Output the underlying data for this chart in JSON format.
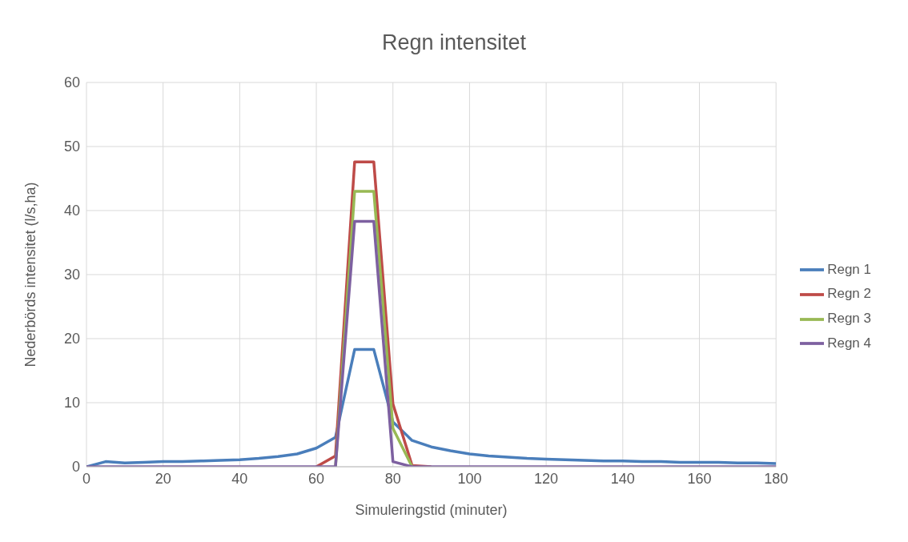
{
  "chart_data": {
    "type": "line",
    "title": "Regn intensitet",
    "xlabel": "Simuleringstid (minuter)",
    "ylabel": "Nederbörds intensitet (l/s,ha)",
    "x": [
      0,
      5,
      10,
      15,
      20,
      25,
      30,
      35,
      40,
      45,
      50,
      55,
      60,
      65,
      70,
      75,
      80,
      85,
      90,
      95,
      100,
      105,
      110,
      115,
      120,
      125,
      130,
      135,
      140,
      145,
      150,
      155,
      160,
      165,
      170,
      175,
      180
    ],
    "series": [
      {
        "name": "Regn 1",
        "color": "#4a7ebb",
        "values": [
          0,
          0.8,
          0.6,
          0.7,
          0.8,
          0.8,
          0.9,
          1.0,
          1.1,
          1.3,
          1.6,
          2.0,
          2.9,
          4.6,
          18.3,
          18.3,
          7.0,
          4.1,
          3.1,
          2.5,
          2.0,
          1.7,
          1.5,
          1.3,
          1.2,
          1.1,
          1.0,
          0.9,
          0.9,
          0.8,
          0.8,
          0.7,
          0.7,
          0.7,
          0.6,
          0.6,
          0.5
        ]
      },
      {
        "name": "Regn 2",
        "color": "#be4b48",
        "values": [
          null,
          null,
          null,
          null,
          null,
          null,
          null,
          null,
          null,
          null,
          null,
          null,
          0,
          1.7,
          47.6,
          47.6,
          9.8,
          0.2,
          0,
          null,
          null,
          null,
          null,
          null,
          null,
          null,
          null,
          null,
          null,
          null,
          null,
          null,
          null,
          null,
          null,
          null,
          null
        ]
      },
      {
        "name": "Regn 3",
        "color": "#98b954",
        "values": [
          null,
          null,
          null,
          null,
          null,
          null,
          null,
          null,
          null,
          null,
          null,
          null,
          null,
          0,
          43,
          43,
          6,
          0,
          null,
          null,
          null,
          null,
          null,
          null,
          null,
          null,
          null,
          null,
          null,
          null,
          null,
          null,
          null,
          null,
          null,
          null,
          null
        ]
      },
      {
        "name": "Regn 4",
        "color": "#7d60a0",
        "values": [
          0,
          0,
          0,
          0,
          0,
          0,
          0,
          0,
          0,
          0,
          0,
          0,
          0,
          0,
          38.3,
          38.3,
          0.8,
          0,
          0,
          0,
          0,
          0,
          0,
          0,
          0,
          0,
          0,
          0,
          0,
          0,
          0,
          0,
          0,
          0,
          0,
          0,
          0
        ]
      }
    ],
    "xlim": [
      0,
      180
    ],
    "xticks": [
      0,
      20,
      40,
      60,
      80,
      100,
      120,
      140,
      160,
      180
    ],
    "ylim": [
      0,
      60
    ],
    "yticks": [
      0,
      10,
      20,
      30,
      40,
      50,
      60
    ],
    "grid": true,
    "legend": "right",
    "marker": "none",
    "line_style": "solid"
  }
}
